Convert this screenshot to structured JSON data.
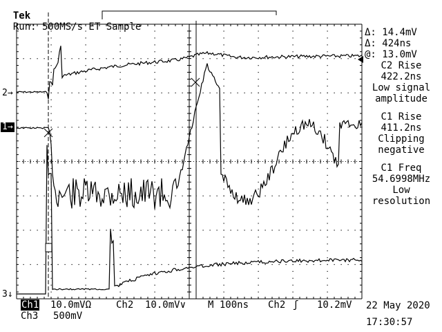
{
  "header": {
    "brand": "Tek",
    "status": "Run: 500MS/s ET Sample"
  },
  "measurements": {
    "delta_v": "Δ: 14.4mV",
    "delta_t": "Δ: 424ns",
    "at_v": "@: 13.0mV",
    "blocks": [
      {
        "title": "C2 Rise",
        "value": "422.2ns",
        "note1": "Low signal",
        "note2": "amplitude"
      },
      {
        "title": "C1 Rise",
        "value": "411.2ns",
        "note1": "Clipping",
        "note2": "negative"
      },
      {
        "title": "C1 Freq",
        "value": "54.6998MHz",
        "note1": "Low",
        "note2": "resolution"
      }
    ]
  },
  "channel_markers": {
    "ch2": "2→",
    "ch1": "1→",
    "ch3": "3↓"
  },
  "footer": {
    "ch1_label": "Ch1",
    "ch1_scale": "10.0mVΩ",
    "ch2_label": "Ch2",
    "ch2_scale": "10.0mV∨",
    "timebase": "M 100ns",
    "trigger_source": "Ch2",
    "trigger_level": "10.2mV",
    "ch3_label": "Ch3",
    "ch3_scale": "500mV",
    "date": "22 May 2020",
    "time": "17:30:57"
  }
}
